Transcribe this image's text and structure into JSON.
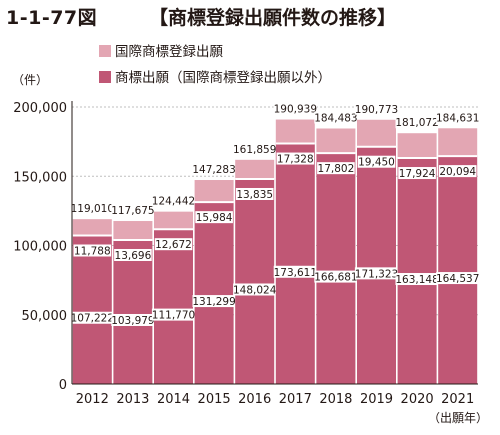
{
  "title": {
    "number": "1-1-77図",
    "text": "【商標登録出願件数の推移】"
  },
  "legend": [
    {
      "label": "国際商標登録出願",
      "color": "#e3a6b3"
    },
    {
      "label": "商標出願（国際商標登録出願以外）",
      "color": "#c05775"
    }
  ],
  "y_unit": "（件）",
  "x_unit": "（出願年）",
  "colors": {
    "domestic": "#c05775",
    "international": "#e3a6b3",
    "separator": "#ffffff",
    "axis": "#231815",
    "grid": "#bfbfbf"
  },
  "chart_data": {
    "type": "bar",
    "stacked": true,
    "categories": [
      "2012",
      "2013",
      "2014",
      "2015",
      "2016",
      "2017",
      "2018",
      "2019",
      "2020",
      "2021"
    ],
    "series": [
      {
        "name": "商標出願（国際商標登録出願以外）",
        "values": [
          107222,
          103979,
          111770,
          131299,
          148024,
          173611,
          166681,
          171323,
          163148,
          164537
        ],
        "labels": [
          "107,222",
          "103,979",
          "111,770",
          "131,299",
          "148,024",
          "173,611",
          "166,681",
          "171,323",
          "163,148",
          "164,537"
        ]
      },
      {
        "name": "国際商標登録出願",
        "values": [
          11788,
          13696,
          12672,
          15984,
          13835,
          17328,
          17802,
          19450,
          17924,
          20094
        ],
        "labels": [
          "11,788",
          "13,696",
          "12,672",
          "15,984",
          "13,835",
          "17,328",
          "17,802",
          "19,450",
          "17,924",
          "20,094"
        ]
      }
    ],
    "totals": [
      119010,
      117675,
      124442,
      147283,
      161859,
      190939,
      184483,
      190773,
      181072,
      184631
    ],
    "total_labels": [
      "119,010",
      "117,675",
      "124,442",
      "147,283",
      "161,859",
      "190,939",
      "184,483",
      "190,773",
      "181,072",
      "184,631"
    ],
    "ylim": [
      0,
      200000
    ],
    "yticks": [
      0,
      50000,
      100000,
      150000,
      200000
    ],
    "ytick_labels": [
      "0",
      "50,000",
      "100,000",
      "150,000",
      "200,000"
    ],
    "grid": true
  }
}
